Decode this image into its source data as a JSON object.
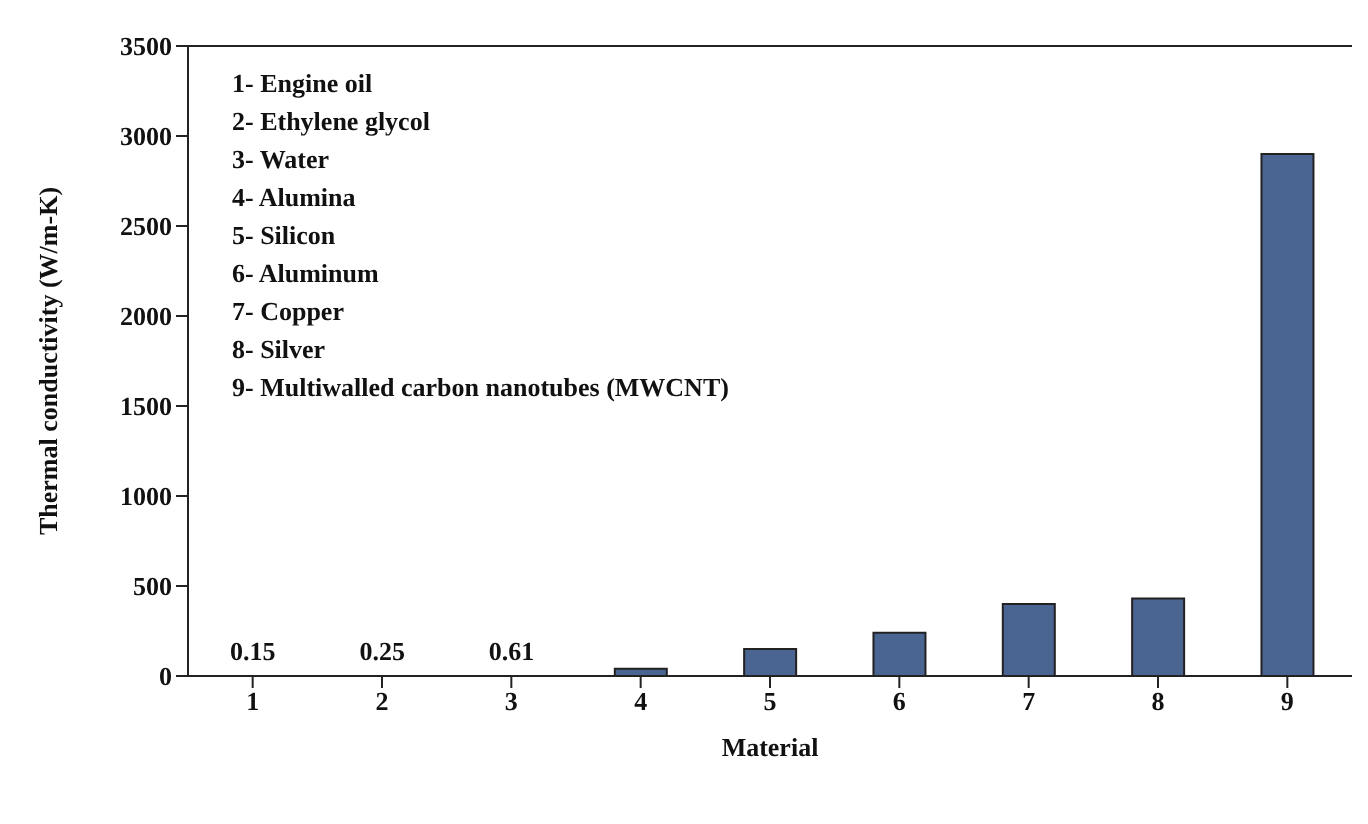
{
  "chart_data": {
    "type": "bar",
    "xlabel": "Material",
    "ylabel": "Thermal conductivity (W/m-K)",
    "categories": [
      "1",
      "2",
      "3",
      "4",
      "5",
      "6",
      "7",
      "8",
      "9"
    ],
    "values": [
      0.15,
      0.25,
      0.61,
      40,
      150,
      240,
      400,
      430,
      2900
    ],
    "value_labels": [
      "0.15",
      "0.25",
      "0.61",
      null,
      null,
      null,
      null,
      null,
      null
    ],
    "color": "#4a6591",
    "ylim": [
      0,
      3500
    ],
    "yticks": [
      0,
      500,
      1000,
      1500,
      2000,
      2500,
      3000,
      3500
    ],
    "grid": false,
    "annotations": [
      "1- Engine oil",
      "2- Ethylene glycol",
      "3- Water",
      "4- Alumina",
      "5- Silicon",
      "6- Aluminum",
      "7- Copper",
      "8- Silver",
      "9- Multiwalled carbon nanotubes (MWCNT)"
    ]
  }
}
